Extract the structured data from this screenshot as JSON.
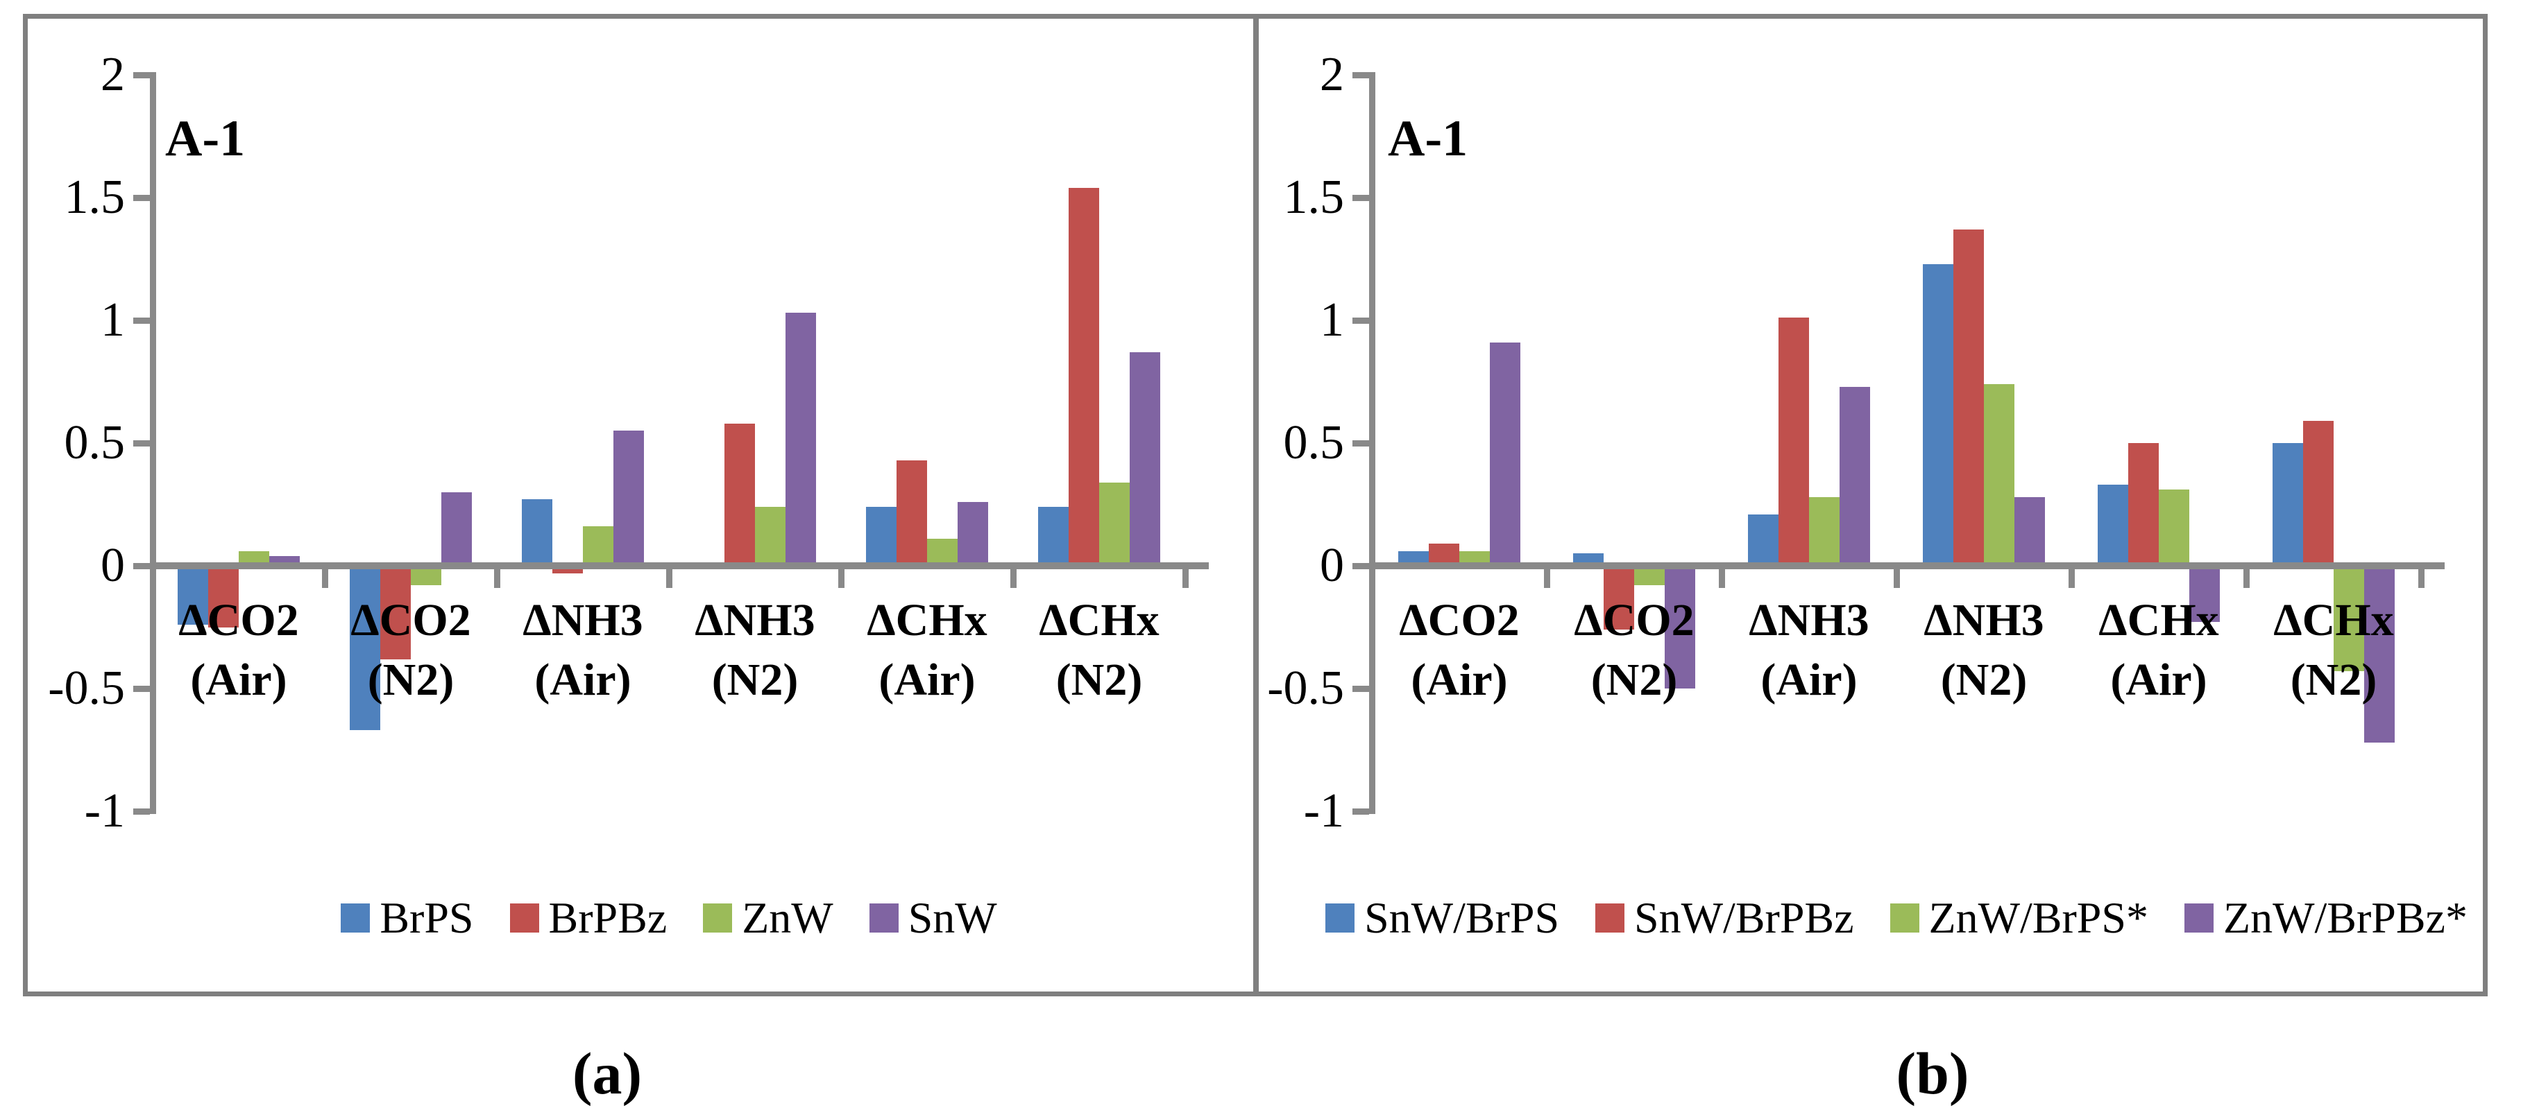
{
  "figure": {
    "background": "#ffffff",
    "border_color": "#7f7f7f",
    "axis_color": "#898989",
    "text_color": "#000000"
  },
  "chart_data": [
    {
      "type": "bar",
      "panel_label": "A-1",
      "caption": "(a)",
      "categories": [
        {
          "l1": "ΔCO2",
          "l2": "(Air)"
        },
        {
          "l1": "ΔCO2",
          "l2": "(N2)"
        },
        {
          "l1": "ΔNH3",
          "l2": "(Air)"
        },
        {
          "l1": "ΔNH3",
          "l2": "(N2)"
        },
        {
          "l1": "ΔCHx",
          "l2": "(Air)"
        },
        {
          "l1": "ΔCHx",
          "l2": "(N2)"
        }
      ],
      "series": [
        {
          "name": "BrPS",
          "color": "#4F81BD",
          "values": [
            -0.24,
            -0.67,
            0.27,
            0.0,
            0.24,
            0.24
          ]
        },
        {
          "name": "BrPBz",
          "color": "#C0504D",
          "values": [
            -0.25,
            -0.38,
            -0.03,
            0.58,
            0.43,
            1.54
          ]
        },
        {
          "name": "ZnW",
          "color": "#9BBB59",
          "values": [
            0.06,
            -0.08,
            0.16,
            0.24,
            0.11,
            0.34
          ]
        },
        {
          "name": "SnW",
          "color": "#8064A2",
          "values": [
            0.04,
            0.3,
            0.55,
            1.03,
            0.26,
            0.87
          ]
        }
      ],
      "ylim": [
        -1,
        2
      ],
      "ytick_step": 0.5,
      "ytick_labels": [
        "2",
        "1.5",
        "1",
        "0.5",
        "0",
        "-0.5",
        "-1"
      ],
      "grid": false,
      "legend_position": "bottom"
    },
    {
      "type": "bar",
      "panel_label": "A-1",
      "caption": "(b)",
      "categories": [
        {
          "l1": "ΔCO2",
          "l2": "(Air)"
        },
        {
          "l1": "ΔCO2",
          "l2": "(N2)"
        },
        {
          "l1": "ΔNH3",
          "l2": "(Air)"
        },
        {
          "l1": "ΔNH3",
          "l2": "(N2)"
        },
        {
          "l1": "ΔCHx",
          "l2": "(Air)"
        },
        {
          "l1": "ΔCHx",
          "l2": "(N2)"
        }
      ],
      "series": [
        {
          "name": "SnW/BrPS",
          "color": "#4F81BD",
          "values": [
            0.06,
            0.05,
            0.21,
            1.23,
            0.33,
            0.5
          ]
        },
        {
          "name": "SnW/BrPBz",
          "color": "#C0504D",
          "values": [
            0.09,
            -0.26,
            1.01,
            1.37,
            0.5,
            0.59
          ]
        },
        {
          "name": "ZnW/BrPS*",
          "color": "#9BBB59",
          "values": [
            0.06,
            -0.08,
            0.28,
            0.74,
            0.31,
            -0.43
          ]
        },
        {
          "name": "ZnW/BrPBz*",
          "color": "#8064A2",
          "values": [
            0.91,
            -0.5,
            0.73,
            0.28,
            -0.23,
            -0.72
          ]
        }
      ],
      "ylim": [
        -1,
        2
      ],
      "ytick_step": 0.5,
      "ytick_labels": [
        "2",
        "1.5",
        "1",
        "0.5",
        "0",
        "-0.5",
        "-1"
      ],
      "grid": false,
      "legend_position": "bottom"
    }
  ]
}
